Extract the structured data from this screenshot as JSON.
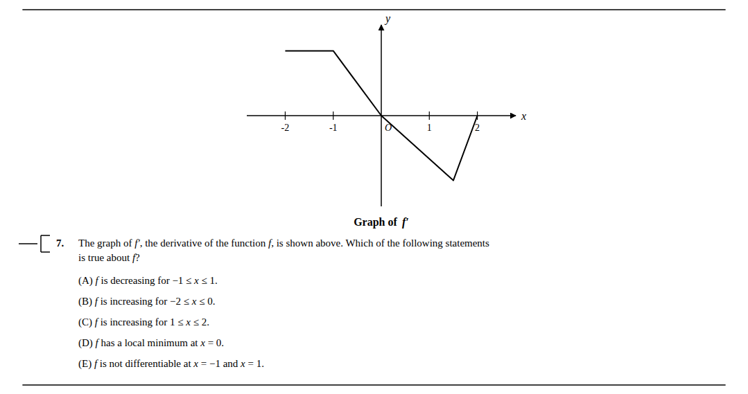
{
  "chart_data": {
    "type": "line",
    "title": "Graph of  f′",
    "x": [
      -2,
      -1,
      0,
      1.5,
      2
    ],
    "values": [
      2,
      2,
      0,
      -2,
      0
    ],
    "color": "#000000",
    "xlim": [
      -2.8,
      2.8
    ],
    "ylim": [
      -2.8,
      2.8
    ],
    "xticks": [
      -2,
      -1,
      1,
      2
    ],
    "tick_labels": "x",
    "xlabel": "x",
    "ylabel": "y",
    "annotations": [
      "O"
    ],
    "question_number": "7.",
    "question_lines": [
      "The graph of f′, the derivative of the function f, is shown above. Which of the following statements",
      "is true about f?"
    ],
    "options": [
      "(A) f is decreasing for −1 ≤ x ≤ 1.",
      "(B) f is increasing for −2 ≤ x ≤ 0.",
      "(C) f is increasing for 1 ≤ x ≤ 2.",
      "(D) f has a local minimum at x = 0.",
      "(E) f is not differentiable at x = −1 and x = 1."
    ]
  }
}
